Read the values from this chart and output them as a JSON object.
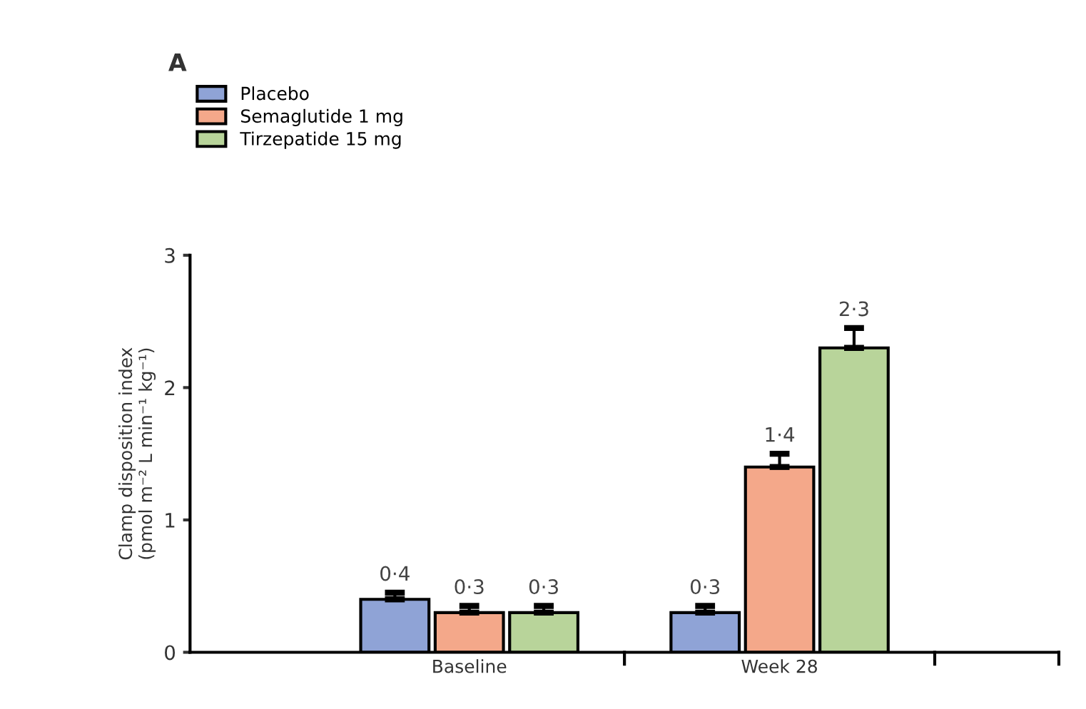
{
  "chart_data": {
    "type": "bar",
    "title": "A",
    "ylabel": "Clamp disposition index\n(pmol m⁻² L min⁻¹ kg⁻¹)",
    "categories": [
      "Baseline",
      "Week 28"
    ],
    "series": [
      {
        "name": "Placebo",
        "color": "#8fa3d6",
        "values": [
          0.4,
          0.3
        ],
        "value_labels": [
          "0·4",
          "0·3"
        ],
        "errors": [
          [
            0.4,
            0.45
          ],
          [
            0.3,
            0.35
          ]
        ]
      },
      {
        "name": "Semaglutide 1 mg",
        "color": "#f4a88a",
        "values": [
          0.3,
          1.4
        ],
        "value_labels": [
          "0·3",
          "1·4"
        ],
        "errors": [
          [
            0.3,
            0.35
          ],
          [
            1.4,
            1.5
          ]
        ]
      },
      {
        "name": "Tirzepatide 15 mg",
        "color": "#b8d49a",
        "values": [
          0.3,
          2.3
        ],
        "value_labels": [
          "0·3",
          "2·3"
        ],
        "errors": [
          [
            0.3,
            0.35
          ],
          [
            2.3,
            2.45
          ]
        ]
      }
    ],
    "ylim": [
      0,
      3
    ],
    "yticks": [
      0,
      1,
      2,
      3
    ],
    "grid": false,
    "legend": "top left"
  }
}
